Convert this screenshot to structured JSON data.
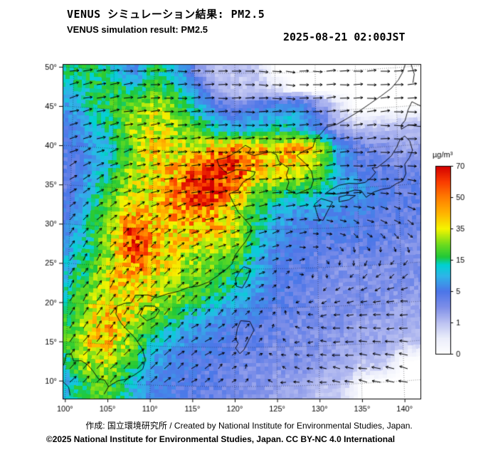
{
  "header": {
    "title_ja": "VENUS シミュレーション結果: PM2.5",
    "title_en": "VENUS simulation result: PM2.5",
    "timestamp": "2025-08-21 02:00JST"
  },
  "footer": {
    "credit": "作成: 国立環境研究所 / Created by National Institute for Environmental Studies, Japan.",
    "copyright": "©2025 National Institute for Environmental Studies, Japan. CC BY-NC 4.0 International"
  },
  "axes": {
    "lat_ticks": [
      50,
      45,
      40,
      35,
      30,
      25,
      20,
      15,
      10
    ],
    "lon_ticks": [
      100,
      105,
      110,
      115,
      120,
      125,
      130,
      135,
      140
    ],
    "degree": "°"
  },
  "colorbar": {
    "unit": "µg/m³",
    "ticks": [
      70,
      50,
      35,
      15,
      5,
      1,
      0
    ]
  },
  "chart_data": {
    "type": "heatmap",
    "title": "VENUS simulation result: PM2.5",
    "unit": "µg/m³",
    "region": {
      "lon_min": 100,
      "lon_max": 140,
      "lat_min": 10,
      "lat_max": 50
    },
    "scale_ticks": [
      0,
      1,
      5,
      15,
      35,
      50,
      70
    ],
    "color_stops": [
      [
        0,
        "#ffffff"
      ],
      [
        0.5,
        "#eceefb"
      ],
      [
        1,
        "#bcc2f2"
      ],
      [
        1.5,
        "#7e8fe8"
      ],
      [
        2,
        "#4d76e8"
      ],
      [
        2.5,
        "#2eb6e8"
      ],
      [
        2.85,
        "#00d2d2"
      ],
      [
        3.1,
        "#21c838"
      ],
      [
        3.5,
        "#6edc1e"
      ],
      [
        4,
        "#f5f500"
      ],
      [
        4.5,
        "#ffb400"
      ],
      [
        5,
        "#ff7d00"
      ],
      [
        5.5,
        "#fa3c00"
      ],
      [
        6,
        "#d40000"
      ]
    ],
    "grid_lon": [
      100,
      102.5,
      105,
      107.5,
      110,
      112.5,
      115,
      117.5,
      120,
      122.5,
      125,
      127.5,
      130,
      132.5,
      135,
      137.5,
      140
    ],
    "grid_lat": [
      50,
      47.5,
      45,
      42.5,
      40,
      37.5,
      35,
      32.5,
      30,
      27.5,
      25,
      22.5,
      20,
      17.5,
      15,
      12.5,
      10
    ],
    "pm25": [
      [
        14,
        18,
        10,
        6,
        16,
        12,
        3,
        1,
        1,
        1,
        0,
        0,
        0,
        0,
        0,
        0,
        0
      ],
      [
        12,
        16,
        20,
        12,
        22,
        16,
        8,
        2,
        1,
        1,
        1,
        0,
        0,
        0,
        0,
        0,
        0
      ],
      [
        8,
        14,
        18,
        24,
        30,
        26,
        14,
        7,
        4,
        6,
        8,
        10,
        4,
        1,
        0,
        0,
        0
      ],
      [
        6,
        10,
        16,
        28,
        34,
        30,
        22,
        14,
        9,
        12,
        15,
        12,
        6,
        2,
        1,
        1,
        1
      ],
      [
        5,
        8,
        12,
        22,
        38,
        34,
        32,
        50,
        52,
        45,
        42,
        48,
        38,
        8,
        4,
        3,
        2
      ],
      [
        4,
        8,
        15,
        30,
        35,
        42,
        55,
        68,
        60,
        42,
        36,
        32,
        26,
        10,
        5,
        4,
        3
      ],
      [
        4,
        10,
        20,
        30,
        35,
        45,
        60,
        65,
        45,
        25,
        20,
        18,
        15,
        10,
        8,
        5,
        4
      ],
      [
        5,
        12,
        25,
        35,
        40,
        45,
        50,
        48,
        30,
        18,
        10,
        8,
        8,
        7,
        6,
        5,
        4
      ],
      [
        6,
        15,
        30,
        60,
        40,
        38,
        45,
        42,
        30,
        15,
        8,
        6,
        5,
        5,
        5,
        4,
        4
      ],
      [
        8,
        15,
        28,
        62,
        45,
        35,
        30,
        30,
        25,
        12,
        6,
        5,
        4,
        4,
        4,
        4,
        3
      ],
      [
        10,
        18,
        30,
        50,
        40,
        30,
        25,
        22,
        18,
        10,
        5,
        4,
        4,
        3,
        3,
        3,
        3
      ],
      [
        12,
        22,
        35,
        40,
        35,
        28,
        22,
        18,
        14,
        8,
        5,
        4,
        3,
        3,
        3,
        3,
        3
      ],
      [
        15,
        28,
        40,
        35,
        30,
        22,
        15,
        10,
        8,
        6,
        4,
        4,
        3,
        3,
        3,
        3,
        2
      ],
      [
        18,
        30,
        42,
        30,
        20,
        12,
        8,
        6,
        5,
        4,
        4,
        3,
        3,
        3,
        2,
        2,
        2
      ],
      [
        20,
        35,
        38,
        25,
        12,
        8,
        6,
        5,
        4,
        4,
        3,
        3,
        3,
        2,
        2,
        2,
        1
      ],
      [
        15,
        30,
        30,
        18,
        8,
        6,
        5,
        4,
        4,
        3,
        3,
        3,
        2,
        2,
        1,
        1,
        0
      ],
      [
        10,
        20,
        22,
        12,
        6,
        5,
        4,
        4,
        3,
        3,
        2,
        2,
        1,
        1,
        0,
        0,
        0
      ]
    ],
    "wind": {
      "lon": [
        100,
        105,
        110,
        115,
        120,
        125,
        130,
        135,
        140
      ],
      "lat": [
        50,
        45,
        40,
        35,
        30,
        25,
        20,
        15,
        10
      ],
      "u": [
        [
          1.2,
          1.2,
          1.1,
          1.2,
          1.2,
          1.3,
          1.3,
          1.2,
          1.2
        ],
        [
          1.1,
          1.2,
          1.2,
          1.3,
          1.3,
          1.3,
          1.3,
          1.3,
          1.2
        ],
        [
          0.9,
          1.0,
          1.2,
          1.3,
          1.4,
          1.4,
          1.4,
          1.3,
          1.2
        ],
        [
          0.7,
          0.8,
          1.0,
          1.2,
          1.3,
          1.2,
          1.1,
          1.0,
          1.0
        ],
        [
          0.5,
          0.6,
          0.7,
          0.9,
          0.9,
          0.8,
          0.6,
          0.5,
          0.6
        ],
        [
          0.4,
          0.5,
          0.6,
          0.7,
          0.6,
          0.4,
          0.1,
          -0.2,
          -0.4
        ],
        [
          0.5,
          0.6,
          0.7,
          0.7,
          0.5,
          0.1,
          -0.4,
          -0.7,
          -0.8
        ],
        [
          0.6,
          0.7,
          0.8,
          0.7,
          0.4,
          -0.1,
          -0.6,
          -0.9,
          -1.0
        ],
        [
          0.7,
          0.8,
          0.8,
          0.6,
          0.2,
          -0.3,
          -0.7,
          -1.0,
          -1.0
        ]
      ],
      "v": [
        [
          0.2,
          0.1,
          0.1,
          0,
          0,
          -0.1,
          0,
          0.1,
          0.1
        ],
        [
          0.3,
          0.2,
          0.1,
          0.1,
          0,
          0,
          0.1,
          0.1,
          0
        ],
        [
          0.4,
          0.3,
          0.2,
          0.1,
          0.1,
          0.1,
          0.2,
          0.1,
          0
        ],
        [
          0.5,
          0.4,
          0.3,
          0.2,
          0.2,
          0.2,
          0.1,
          0,
          -0.1
        ],
        [
          0.6,
          0.6,
          0.5,
          0.4,
          0.3,
          0.2,
          0,
          -0.3,
          -0.5
        ],
        [
          0.7,
          0.7,
          0.6,
          0.5,
          0.4,
          0.2,
          -0.1,
          -0.4,
          -0.4
        ],
        [
          0.8,
          0.8,
          0.7,
          0.6,
          0.4,
          0.2,
          -0.1,
          -0.2,
          -0.1
        ],
        [
          0.8,
          0.8,
          0.7,
          0.5,
          0.3,
          0.1,
          0,
          0.1,
          0.1
        ],
        [
          0.7,
          0.8,
          0.7,
          0.4,
          0.2,
          0.1,
          0.1,
          0.2,
          0.2
        ]
      ]
    },
    "coastlines": [
      [
        [
          104.6,
          8.6
        ],
        [
          105.1,
          9.6
        ],
        [
          106.2,
          10.4
        ],
        [
          107.1,
          10.6
        ],
        [
          108.1,
          11.2
        ],
        [
          109.1,
          12.0
        ],
        [
          109.4,
          13.2
        ],
        [
          109.0,
          14.6
        ],
        [
          108.1,
          16.0
        ],
        [
          107.1,
          17.0
        ],
        [
          106.4,
          17.8
        ],
        [
          105.8,
          18.9
        ],
        [
          105.9,
          19.9
        ],
        [
          106.8,
          20.3
        ],
        [
          107.6,
          20.4
        ],
        [
          108.1,
          21.4
        ],
        [
          109.6,
          21.5
        ],
        [
          110.6,
          21.2
        ],
        [
          111.9,
          21.7
        ],
        [
          113.3,
          22.1
        ],
        [
          114.4,
          22.6
        ],
        [
          115.6,
          22.8
        ],
        [
          116.8,
          23.3
        ],
        [
          117.9,
          24.1
        ],
        [
          118.9,
          24.9
        ],
        [
          119.7,
          25.7
        ],
        [
          120.0,
          26.7
        ],
        [
          120.6,
          27.6
        ],
        [
          121.3,
          28.5
        ],
        [
          121.9,
          29.6
        ],
        [
          122.0,
          30.4
        ],
        [
          121.2,
          31.4
        ],
        [
          120.4,
          32.3
        ],
        [
          119.8,
          33.5
        ],
        [
          119.3,
          34.6
        ],
        [
          120.4,
          35.1
        ],
        [
          121.0,
          36.1
        ],
        [
          122.3,
          36.9
        ],
        [
          122.5,
          37.4
        ],
        [
          121.4,
          37.6
        ],
        [
          120.2,
          37.7
        ],
        [
          119.1,
          37.2
        ],
        [
          118.1,
          38.1
        ],
        [
          117.8,
          39.0
        ],
        [
          118.9,
          39.2
        ],
        [
          120.3,
          40.0
        ],
        [
          121.3,
          40.8
        ],
        [
          122.0,
          40.4
        ],
        [
          121.6,
          39.8
        ],
        [
          122.4,
          39.5
        ],
        [
          123.6,
          39.8
        ],
        [
          124.4,
          39.9
        ]
      ],
      [
        [
          124.4,
          39.9
        ],
        [
          125.1,
          39.6
        ],
        [
          125.4,
          38.7
        ],
        [
          126.6,
          37.8
        ],
        [
          126.3,
          36.9
        ],
        [
          126.6,
          36.0
        ],
        [
          126.3,
          35.1
        ],
        [
          127.5,
          34.5
        ],
        [
          128.6,
          34.9
        ],
        [
          129.3,
          35.2
        ],
        [
          129.6,
          36.1
        ],
        [
          129.4,
          37.3
        ],
        [
          128.7,
          38.3
        ],
        [
          127.6,
          39.4
        ],
        [
          128.4,
          39.9
        ],
        [
          129.6,
          40.4
        ],
        [
          129.9,
          41.4
        ],
        [
          130.7,
          42.2
        ],
        [
          131.3,
          42.9
        ],
        [
          132.6,
          43.2
        ],
        [
          133.9,
          43.9
        ],
        [
          135.3,
          44.7
        ],
        [
          136.7,
          45.6
        ],
        [
          138.1,
          46.5
        ],
        [
          139.4,
          47.4
        ],
        [
          140.3,
          48.4
        ],
        [
          140.9,
          49.4
        ],
        [
          141.2,
          50.3
        ]
      ],
      [
        [
          130.2,
          31.2
        ],
        [
          129.9,
          32.2
        ],
        [
          129.7,
          33.1
        ],
        [
          130.5,
          33.8
        ],
        [
          131.1,
          33.6
        ],
        [
          131.9,
          33.3
        ],
        [
          131.2,
          32.0
        ],
        [
          130.7,
          31.0
        ],
        [
          130.2,
          31.2
        ]
      ],
      [
        [
          132.7,
          33.3
        ],
        [
          133.9,
          33.5
        ],
        [
          134.7,
          34.0
        ],
        [
          133.6,
          34.1
        ],
        [
          132.7,
          33.9
        ],
        [
          132.7,
          33.3
        ]
      ],
      [
        [
          131.0,
          34.4
        ],
        [
          132.3,
          34.3
        ],
        [
          133.4,
          34.4
        ],
        [
          134.6,
          34.7
        ],
        [
          135.4,
          34.6
        ],
        [
          136.0,
          33.7
        ],
        [
          136.9,
          34.3
        ],
        [
          137.9,
          34.6
        ],
        [
          138.9,
          34.7
        ],
        [
          139.7,
          35.2
        ],
        [
          140.5,
          35.5
        ],
        [
          140.9,
          36.4
        ],
        [
          140.8,
          37.6
        ],
        [
          141.4,
          38.4
        ],
        [
          141.8,
          39.3
        ],
        [
          141.5,
          40.5
        ],
        [
          140.9,
          41.2
        ],
        [
          140.3,
          40.8
        ],
        [
          139.9,
          39.9
        ],
        [
          139.2,
          38.8
        ],
        [
          138.5,
          38.2
        ],
        [
          137.4,
          37.4
        ],
        [
          136.8,
          37.4
        ],
        [
          137.2,
          36.8
        ],
        [
          136.7,
          36.2
        ],
        [
          135.9,
          35.6
        ],
        [
          135.0,
          35.5
        ],
        [
          133.9,
          35.6
        ],
        [
          132.7,
          35.4
        ],
        [
          131.7,
          34.9
        ],
        [
          131.0,
          34.4
        ]
      ],
      [
        [
          140.5,
          42.1
        ],
        [
          141.4,
          42.6
        ],
        [
          142.6,
          42.3
        ],
        [
          143.5,
          42.2
        ],
        [
          144.6,
          43.0
        ],
        [
          143.9,
          44.2
        ],
        [
          142.9,
          44.9
        ],
        [
          141.9,
          45.5
        ],
        [
          141.4,
          44.5
        ],
        [
          141.0,
          43.2
        ],
        [
          140.5,
          42.6
        ],
        [
          140.5,
          42.1
        ]
      ],
      [
        [
          121.1,
          25.3
        ],
        [
          121.9,
          25.0
        ],
        [
          121.6,
          23.9
        ],
        [
          120.9,
          22.6
        ],
        [
          120.2,
          22.8
        ],
        [
          120.1,
          23.8
        ],
        [
          120.7,
          24.9
        ],
        [
          121.1,
          25.3
        ]
      ],
      [
        [
          109.2,
          20.1
        ],
        [
          110.4,
          20.1
        ],
        [
          111.0,
          19.6
        ],
        [
          110.5,
          18.7
        ],
        [
          109.5,
          18.2
        ],
        [
          108.7,
          18.9
        ],
        [
          109.2,
          20.1
        ]
      ],
      [
        [
          100.0,
          13.4
        ],
        [
          100.6,
          13.5
        ],
        [
          100.9,
          12.6
        ],
        [
          101.8,
          12.7
        ],
        [
          102.6,
          12.2
        ],
        [
          103.2,
          11.5
        ],
        [
          103.9,
          10.5
        ],
        [
          104.6,
          10.4
        ],
        [
          105.1,
          9.6
        ]
      ],
      [
        [
          100.0,
          13.4
        ],
        [
          99.8,
          12.2
        ],
        [
          99.3,
          11.1
        ],
        [
          99.6,
          10.0
        ],
        [
          100.4,
          9.2
        ],
        [
          100.6,
          8.2
        ]
      ],
      [
        [
          120.1,
          16.1
        ],
        [
          120.3,
          17.4
        ],
        [
          120.7,
          18.4
        ],
        [
          121.8,
          18.3
        ],
        [
          122.3,
          17.2
        ],
        [
          121.7,
          16.0
        ],
        [
          121.1,
          14.7
        ],
        [
          120.6,
          14.2
        ],
        [
          120.1,
          14.9
        ],
        [
          120.4,
          15.5
        ],
        [
          120.1,
          16.1
        ]
      ],
      [
        [
          141.9,
          50.4
        ],
        [
          142.3,
          49.0
        ],
        [
          142.1,
          47.9
        ]
      ]
    ]
  }
}
